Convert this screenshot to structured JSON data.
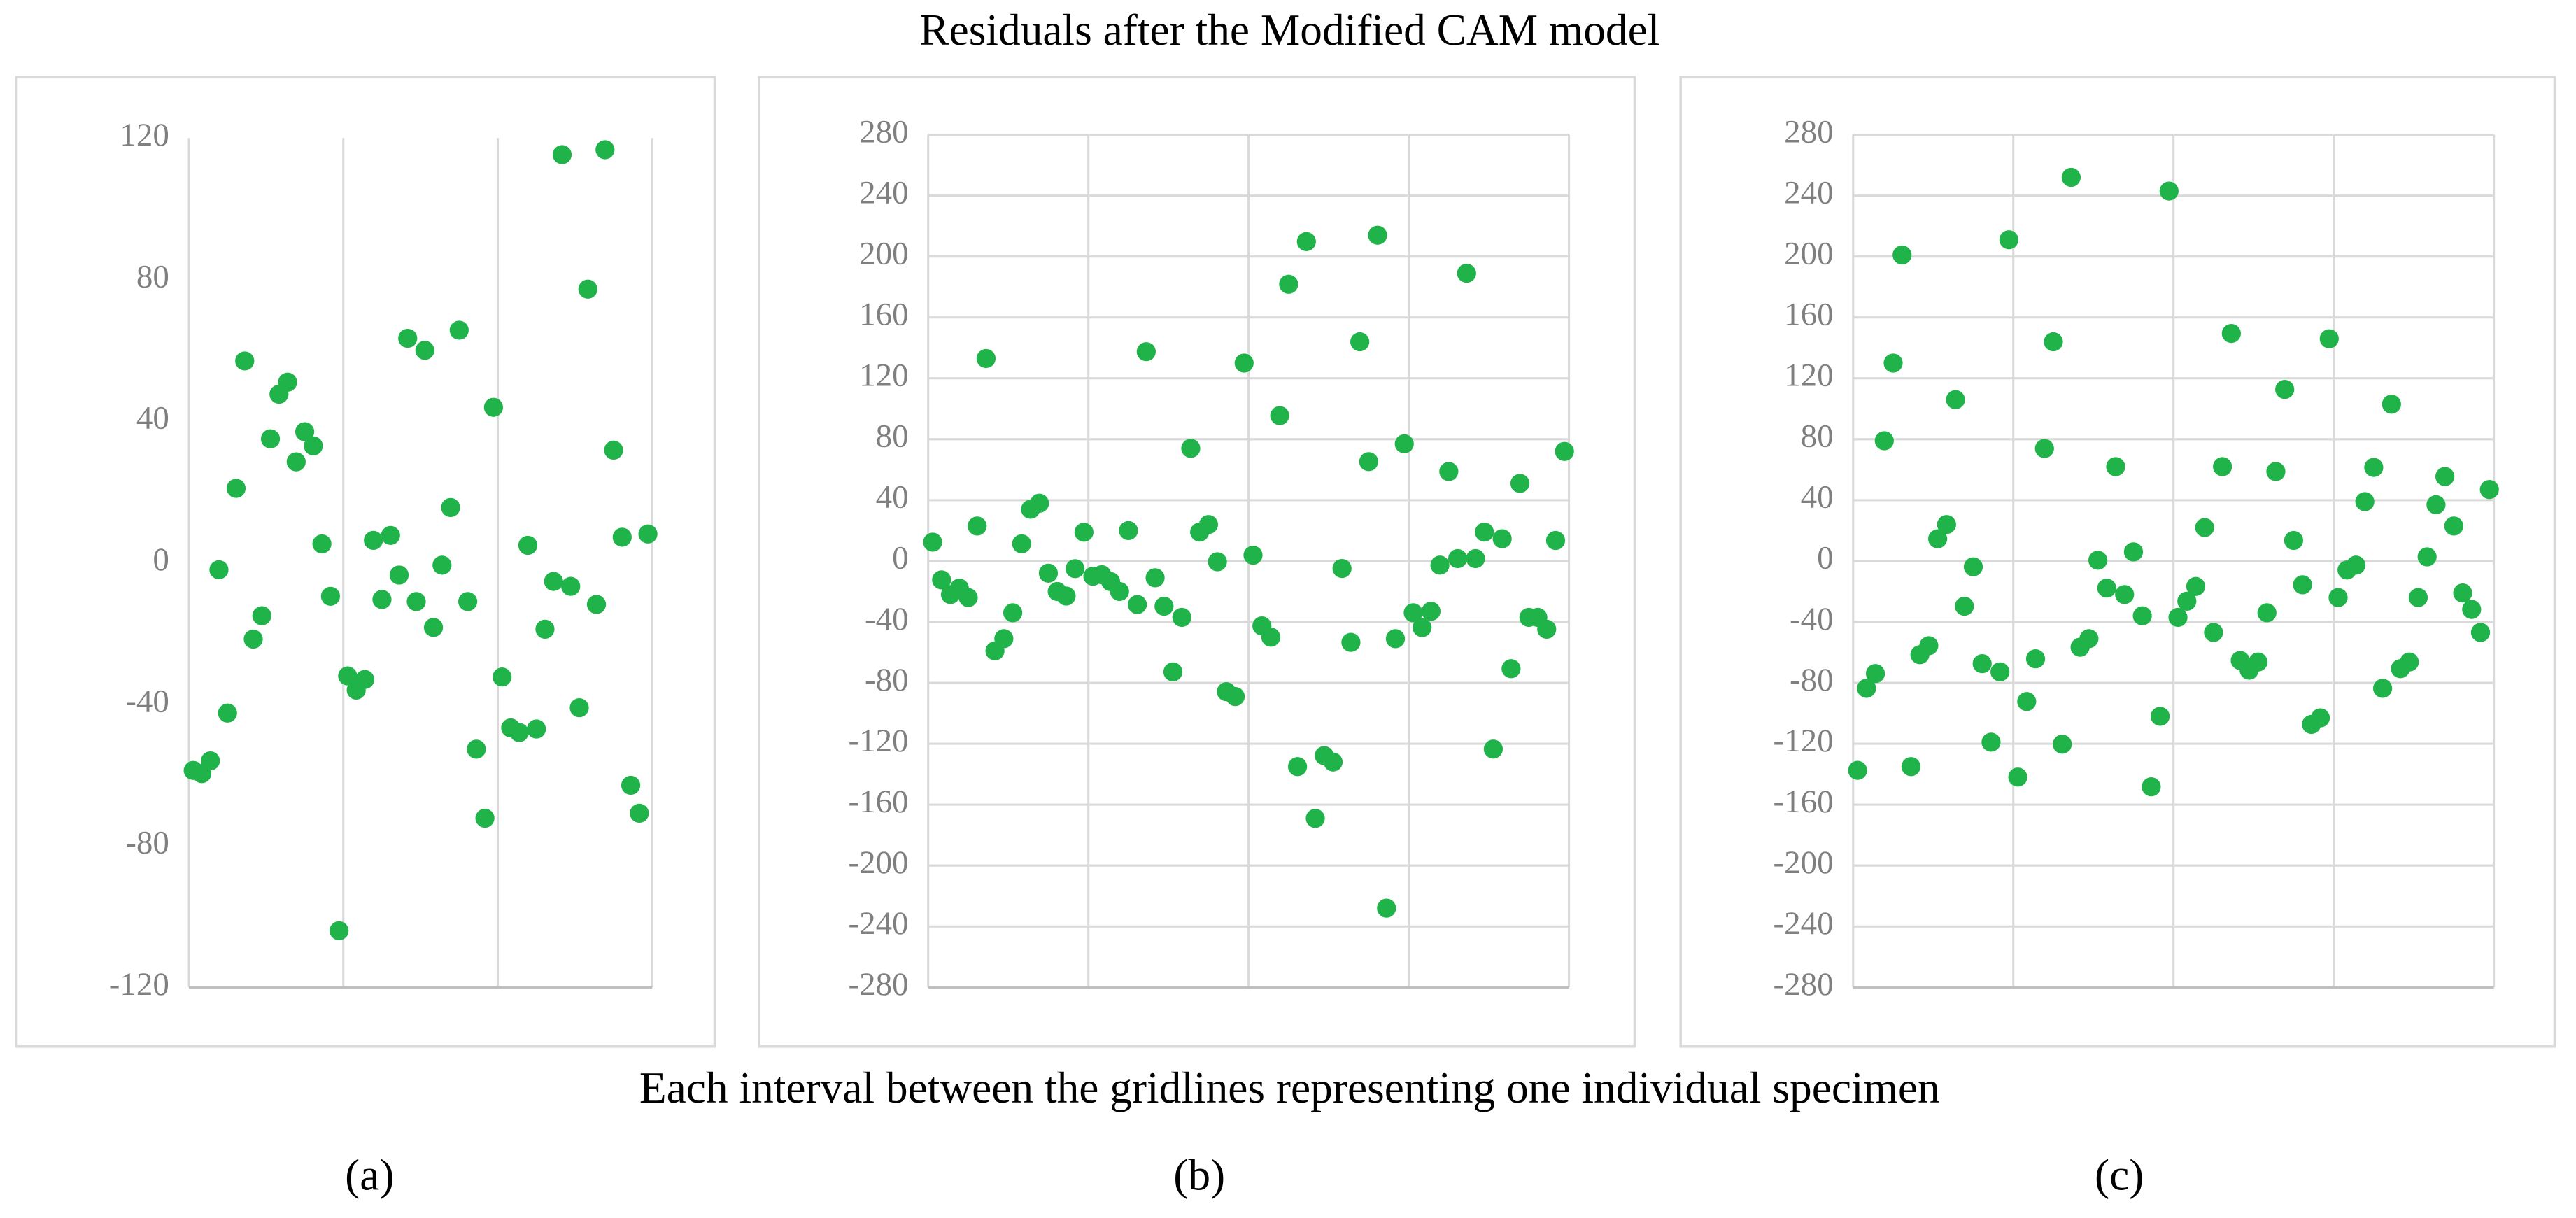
{
  "title": "Residuals after the Modified CAM model",
  "caption": "Each interval between the gridlines representing one individual specimen",
  "chart_data": [
    {
      "type": "scatter",
      "panel_label": "(a)",
      "color": "#1fb34a",
      "grid": true,
      "hgrid": false,
      "xlim": [
        0,
        3
      ],
      "xgrid": [
        0,
        1,
        2,
        3
      ],
      "ylim": [
        -120,
        120
      ],
      "yticks": [
        -120,
        -80,
        -40,
        0,
        40,
        80,
        120
      ],
      "values": [
        -58.7,
        -59.6,
        -56,
        -2,
        -42.5,
        21,
        57,
        -21.6,
        -15,
        35,
        47.6,
        51,
        28.5,
        37,
        33,
        5.3,
        -9.5,
        -104,
        -32,
        -36,
        -33,
        6.3,
        -10.4,
        7.7,
        -3.5,
        63.4,
        -11,
        60,
        -18.3,
        -0.7,
        15.6,
        65.7,
        -11,
        -52.7,
        -72.2,
        43.9,
        -32.3,
        -46.7,
        -48,
        4.9,
        -47,
        -18.8,
        -5.3,
        115.3,
        -6.7,
        -41,
        77.3,
        -11.8,
        116.7,
        31.8,
        7.2,
        -62.9,
        -70.8,
        8.1
      ]
    },
    {
      "type": "scatter",
      "panel_label": "(b)",
      "color": "#1fb34a",
      "grid": true,
      "hgrid": true,
      "xlim": [
        0,
        4
      ],
      "xgrid": [
        0,
        1,
        2,
        3,
        4
      ],
      "ylim": [
        -280,
        280
      ],
      "yticks": [
        -280,
        -240,
        -200,
        -160,
        -120,
        -80,
        -40,
        0,
        40,
        80,
        120,
        160,
        200,
        240,
        280
      ],
      "values": [
        12.4,
        -12.4,
        -22,
        -17.8,
        -24,
        23,
        133,
        -59,
        -51,
        -34,
        11.3,
        34,
        38,
        -8,
        -20,
        -23,
        -5,
        18.9,
        -10,
        -9,
        -13.5,
        -20,
        20,
        -28.6,
        137.5,
        -11,
        -29.7,
        -72.8,
        -37,
        74,
        19,
        24,
        -0.5,
        -85.8,
        -89,
        130,
        3.8,
        -42.6,
        -50,
        95.5,
        181.8,
        -135,
        209.8,
        -169,
        -127.8,
        -132,
        -4.9,
        -53.4,
        144,
        65.3,
        214,
        -228,
        -51,
        77,
        -34,
        -43.7,
        -33,
        -2.7,
        58.8,
        1.6,
        189,
        1.6,
        19,
        -123.5,
        14.6,
        -70.7,
        51,
        -37,
        -37,
        -44.8,
        13.5,
        72
      ]
    },
    {
      "type": "scatter",
      "panel_label": "(c)",
      "color": "#1fb34a",
      "grid": true,
      "hgrid": true,
      "xlim": [
        0,
        4
      ],
      "xgrid": [
        0,
        1,
        2,
        3,
        4
      ],
      "ylim": [
        -280,
        280
      ],
      "yticks": [
        -280,
        -240,
        -200,
        -160,
        -120,
        -80,
        -40,
        0,
        40,
        80,
        120,
        160,
        200,
        240,
        280
      ],
      "values": [
        -137.5,
        -83.6,
        -73.9,
        79,
        130,
        201,
        -135,
        -61.5,
        -55.6,
        14.6,
        24,
        106,
        -29.7,
        -3.8,
        -67.4,
        -119,
        -72.8,
        211,
        -141.9,
        -92.3,
        -64.2,
        73.9,
        144,
        -120.3,
        252,
        -56.6,
        -51,
        0.5,
        -17.8,
        62,
        -22,
        6,
        -36,
        -148.3,
        -102,
        243,
        -37,
        -26.4,
        -16.7,
        22,
        -46.9,
        62,
        149.5,
        -65.3,
        -71.7,
        -66.3,
        -34,
        58.8,
        112.7,
        13.5,
        -15.6,
        -107.3,
        -103,
        146,
        -24,
        -5.9,
        -2.7,
        39,
        61.5,
        -83.6,
        103,
        -70.7,
        -66.3,
        -24,
        2.7,
        37,
        55.5,
        23,
        -21,
        -31.8,
        -46.9,
        47
      ]
    }
  ]
}
